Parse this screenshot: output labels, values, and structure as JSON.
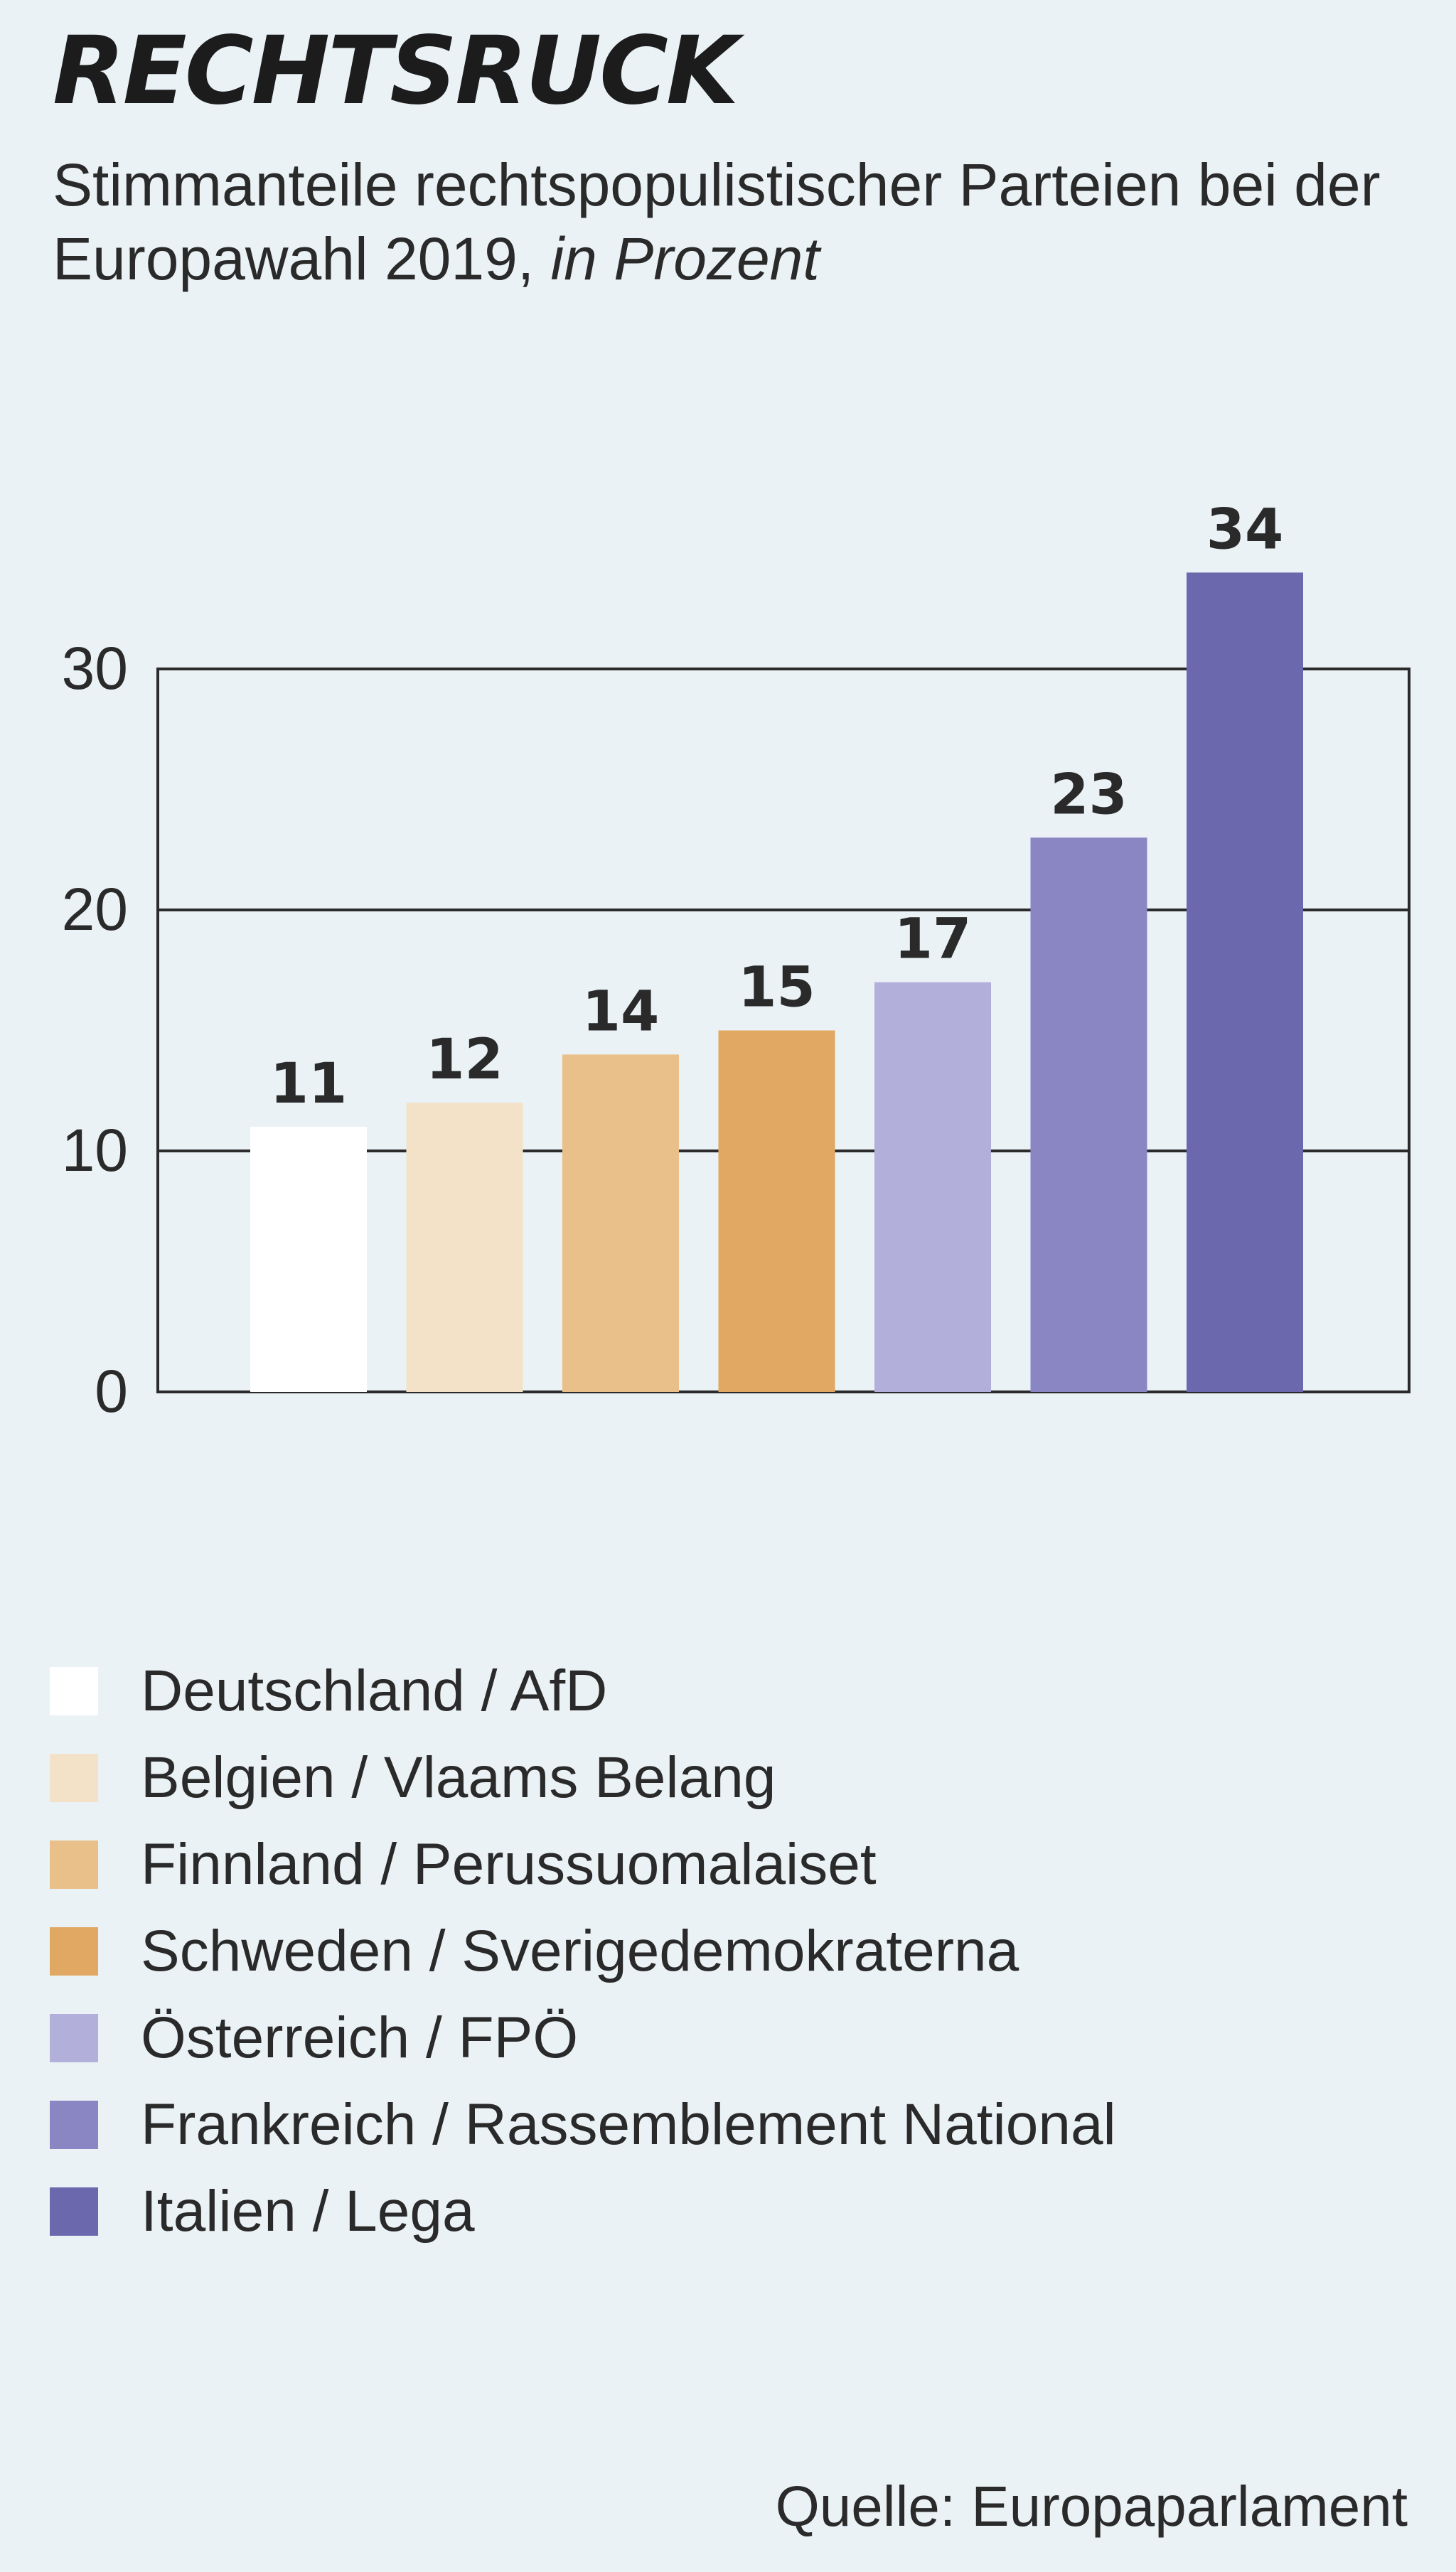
{
  "title": "RECHTSRUCK",
  "subtitle_main": "Stimmanteile rechtspopulistischer Parteien bei der Europawahl 2019, ",
  "subtitle_unit": "in Prozent",
  "source": "Quelle: Europaparlament",
  "chart_data": {
    "type": "bar",
    "title": "RECHTSRUCK",
    "categories": [
      "Deutschland / AfD",
      "Belgien / Vlaams Belang",
      "Finnland / Perussuomalaiset",
      "Schweden / Sverigedemokraterna",
      "Österreich / FPÖ",
      "Frankreich / Rassemblement National",
      "Italien / Lega"
    ],
    "values": [
      11,
      12,
      14,
      15,
      17,
      23,
      34
    ],
    "colors": [
      "#ffffff",
      "#f4e2c8",
      "#e9c08a",
      "#e0a862",
      "#b2afdb",
      "#8a86c4",
      "#6b68ae"
    ],
    "yticks": [
      0,
      10,
      20,
      30
    ],
    "ylim": [
      0,
      30
    ],
    "grid": true,
    "data_labels": true,
    "legend_position": "bottom",
    "xlabel": "",
    "ylabel": ""
  }
}
